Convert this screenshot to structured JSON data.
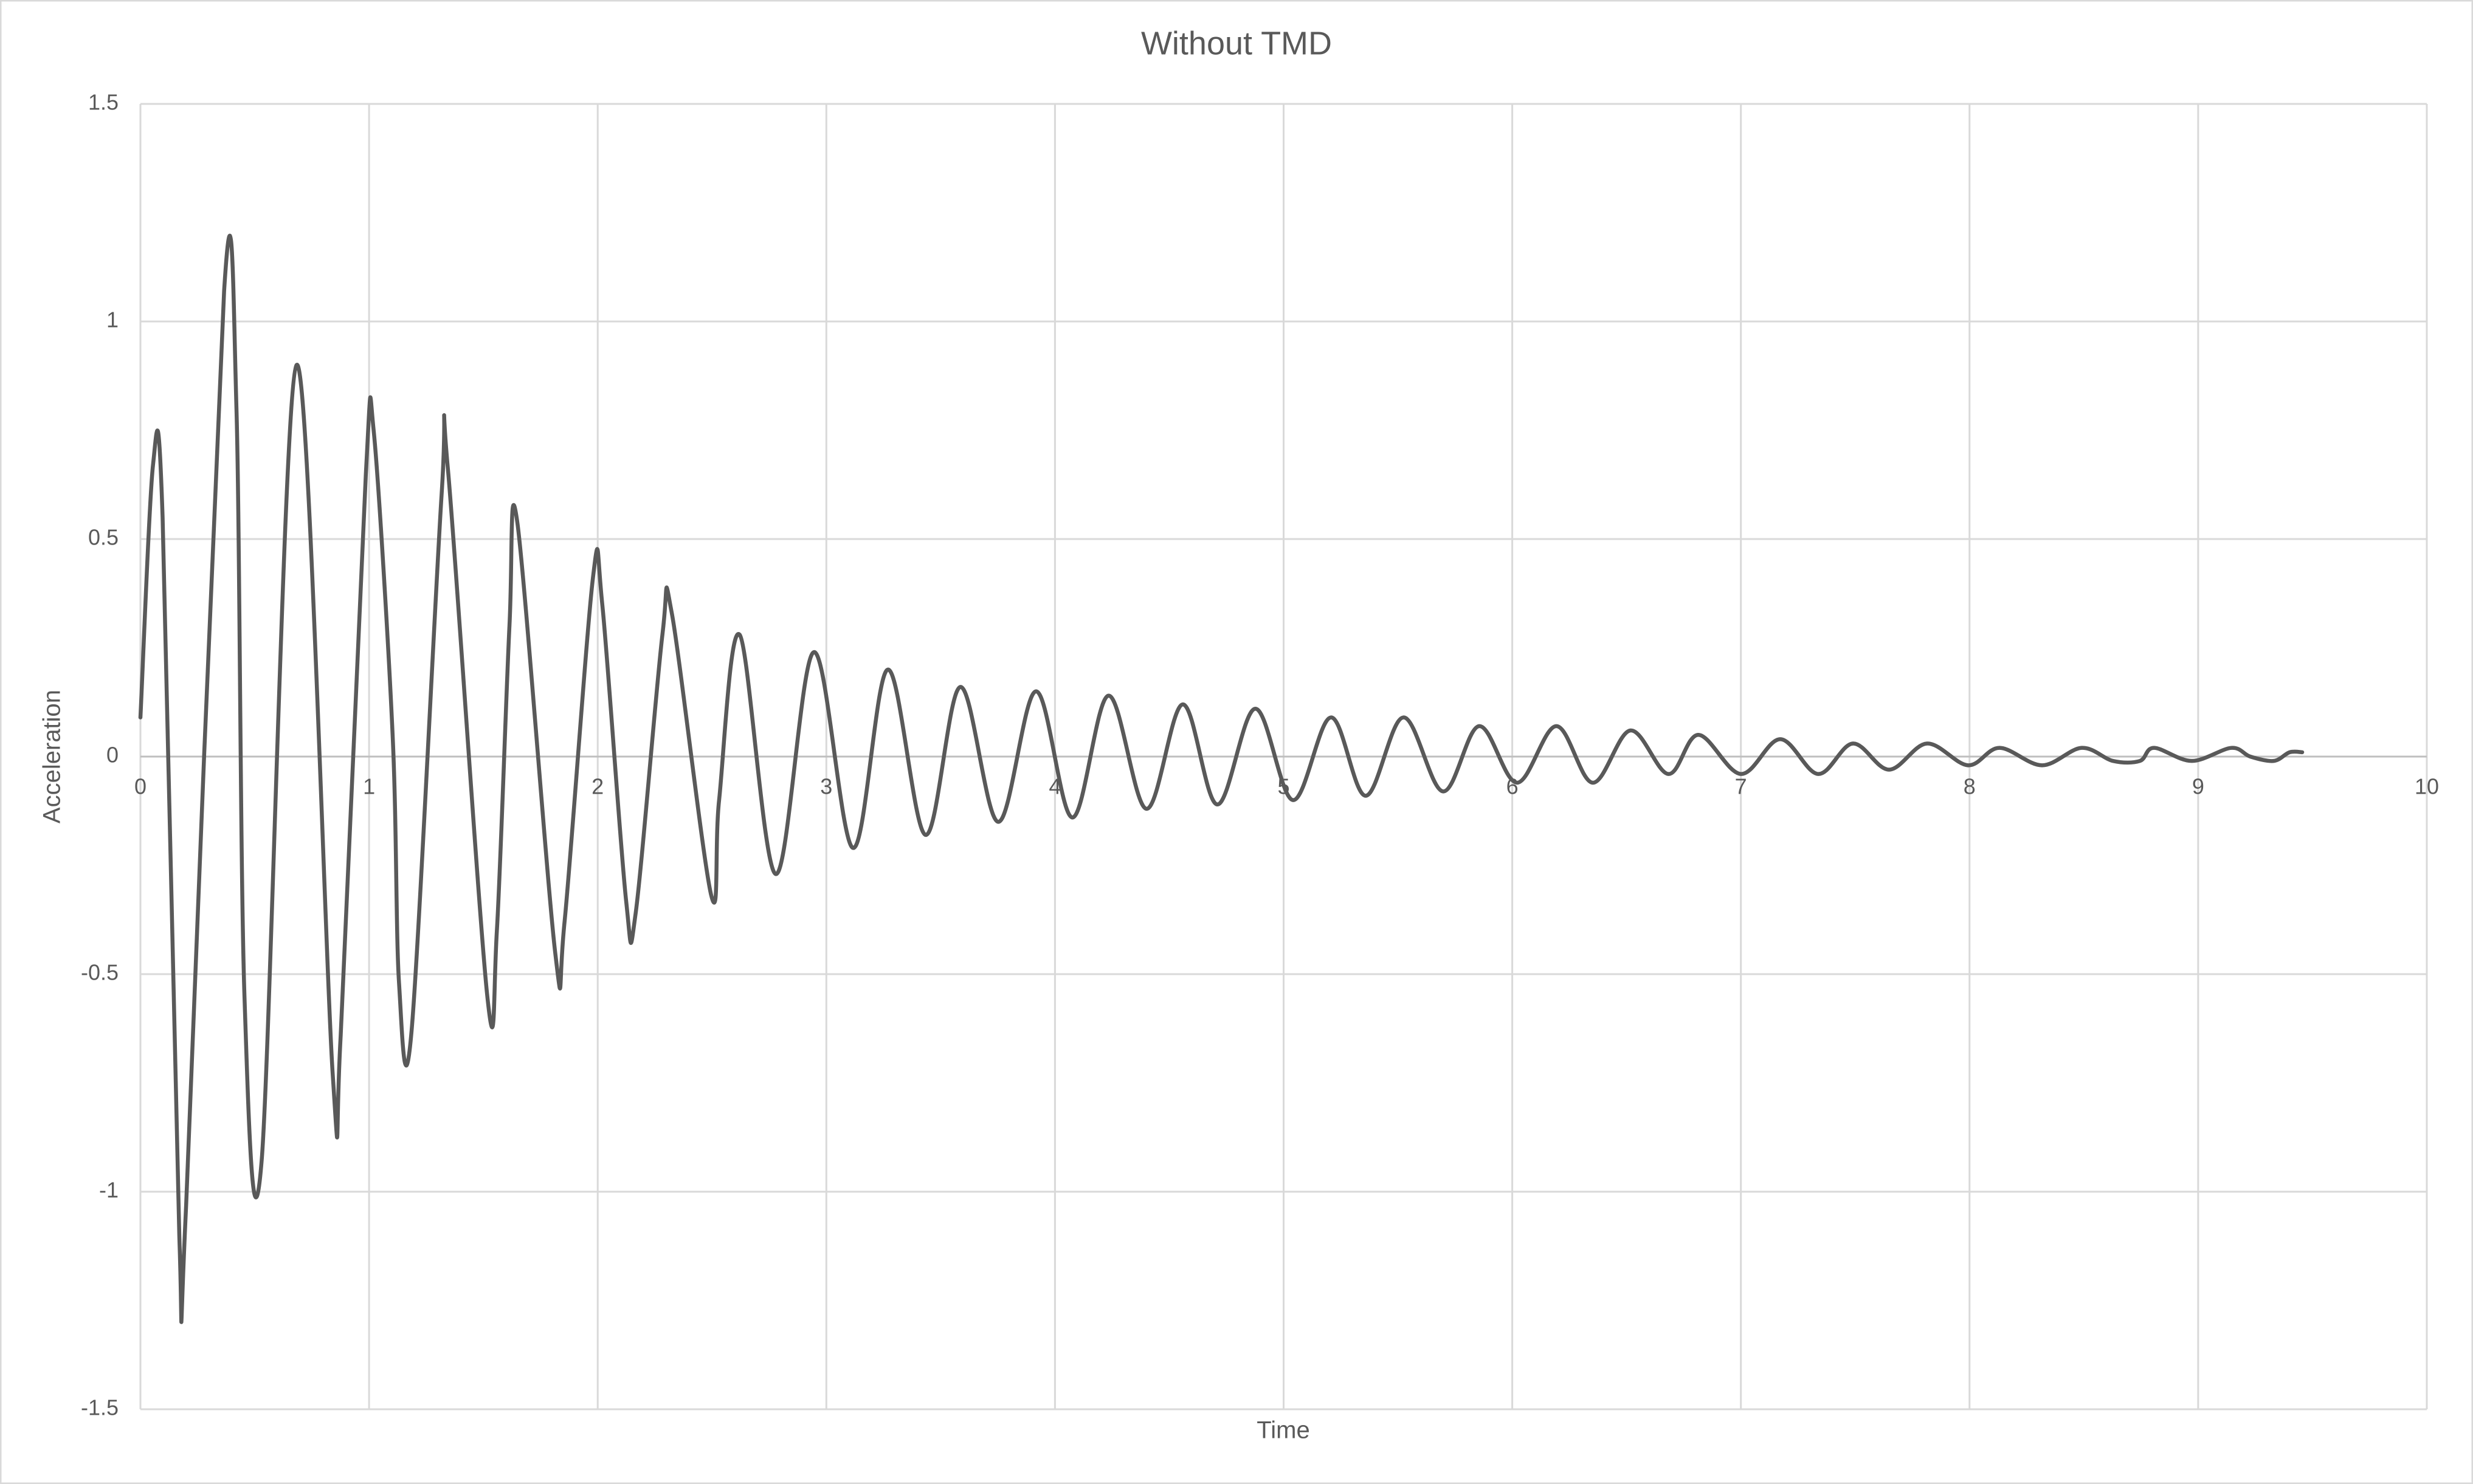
{
  "chart_data": {
    "type": "line",
    "title": "Without TMD",
    "x_label": "Time",
    "y_label": "Acceleration",
    "xlim": [
      0,
      10
    ],
    "ylim": [
      -1.5,
      1.5
    ],
    "xticks": [
      0,
      1,
      2,
      3,
      4,
      5,
      6,
      7,
      8,
      9,
      10
    ],
    "yticks": [
      -1.5,
      -1,
      -0.5,
      0,
      0.5,
      1,
      1.5
    ],
    "grid": true,
    "series": [
      {
        "name": "Acceleration",
        "color": "#595959",
        "x": [
          0,
          0.055,
          0.097,
          0.17,
          0.2,
          0.366,
          0.42,
          0.455,
          0.53,
          0.683,
          0.841,
          0.876,
          0.986,
          1.02,
          1.103,
          1.131,
          1.186,
          1.317,
          1.345,
          1.517,
          1.559,
          1.614,
          1.648,
          1.814,
          1.855,
          1.979,
          2.02,
          2.124,
          2.166,
          2.283,
          2.324,
          2.497,
          2.531,
          2.621,
          2.779,
          2.945,
          3.117,
          3.269,
          3.434,
          3.586,
          3.752,
          3.917,
          4.076,
          4.234,
          4.4,
          4.559,
          4.71,
          4.876,
          5.041,
          5.207,
          5.359,
          5.524,
          5.697,
          5.855,
          6.021,
          6.193,
          6.352,
          6.517,
          6.683,
          6.814,
          7.0,
          7.172,
          7.338,
          7.49,
          7.648,
          7.814,
          7.993,
          8.131,
          8.317,
          8.49,
          8.628,
          8.745,
          8.807,
          8.972,
          9.145,
          9.228,
          9.331,
          9.4,
          9.455
        ],
        "values": [
          0.09,
          0.67,
          0.55,
          -1.1,
          -1.03,
          1.07,
          0.8,
          -0.55,
          -0.93,
          0.9,
          -0.73,
          -0.64,
          0.65,
          0.75,
          0.05,
          -0.52,
          -0.63,
          0.6,
          0.66,
          -0.55,
          -0.4,
          0.3,
          0.54,
          -0.45,
          -0.38,
          0.41,
          0.35,
          -0.33,
          -0.36,
          0.28,
          0.33,
          -0.32,
          -0.1,
          0.28,
          -0.27,
          0.24,
          -0.21,
          0.2,
          -0.18,
          0.16,
          -0.15,
          0.15,
          -0.14,
          0.14,
          -0.12,
          0.12,
          -0.11,
          0.11,
          -0.1,
          0.09,
          -0.09,
          0.09,
          -0.08,
          0.07,
          -0.06,
          0.07,
          -0.06,
          0.06,
          -0.04,
          0.05,
          -0.04,
          0.04,
          -0.04,
          0.03,
          -0.03,
          0.03,
          -0.02,
          0.02,
          -0.02,
          0.02,
          -0.01,
          -0.01,
          0.02,
          -0.01,
          0.02,
          0.0,
          -0.01,
          0.01,
          0.01
        ]
      }
    ]
  }
}
